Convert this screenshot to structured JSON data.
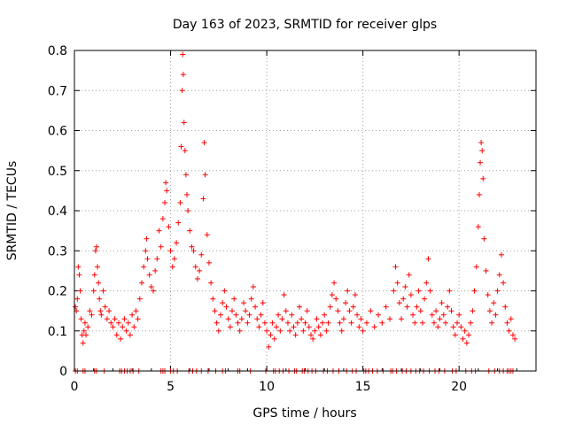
{
  "chart_data": {
    "type": "scatter",
    "title": "Day 163 of 2023, SRMTID for receiver glps",
    "xlabel": "GPS time / hours",
    "ylabel": "SRMTID / TECUs",
    "xlim": [
      0,
      24
    ],
    "ylim": [
      0,
      0.8
    ],
    "xticks": [
      0,
      5,
      10,
      15,
      20
    ],
    "yticks": [
      0,
      0.1,
      0.2,
      0.3,
      0.4,
      0.5,
      0.6,
      0.7,
      0.8
    ],
    "xtick_labels": [
      "0",
      "5",
      "10",
      "15",
      "20"
    ],
    "ytick_labels": [
      "0",
      "0.1",
      "0.2",
      "0.3",
      "0.4",
      "0.5",
      "0.6",
      "0.7",
      "0.8"
    ],
    "grid": true,
    "marker": "+",
    "color": "#ff0000",
    "series": [
      {
        "name": "SRMTID",
        "points": [
          [
            0.05,
            0.16
          ],
          [
            0.1,
            0.15
          ],
          [
            0.15,
            0.18
          ],
          [
            0.2,
            0.26
          ],
          [
            0.25,
            0.24
          ],
          [
            0.3,
            0.2
          ],
          [
            0.35,
            0.13
          ],
          [
            0.4,
            0.09
          ],
          [
            0.45,
            0.07
          ],
          [
            0.5,
            0.1
          ],
          [
            0.55,
            0.12
          ],
          [
            0.6,
            0.09
          ],
          [
            0.7,
            0.11
          ],
          [
            0.8,
            0.15
          ],
          [
            0.9,
            0.14
          ],
          [
            1.0,
            0.2
          ],
          [
            1.05,
            0.24
          ],
          [
            1.1,
            0.3
          ],
          [
            1.15,
            0.31
          ],
          [
            1.2,
            0.26
          ],
          [
            1.25,
            0.22
          ],
          [
            1.3,
            0.18
          ],
          [
            1.35,
            0.15
          ],
          [
            1.4,
            0.14
          ],
          [
            1.5,
            0.2
          ],
          [
            1.6,
            0.16
          ],
          [
            1.7,
            0.13
          ],
          [
            1.8,
            0.15
          ],
          [
            1.9,
            0.12
          ],
          [
            2.0,
            0.11
          ],
          [
            2.1,
            0.13
          ],
          [
            2.2,
            0.09
          ],
          [
            2.3,
            0.12
          ],
          [
            2.4,
            0.08
          ],
          [
            2.5,
            0.11
          ],
          [
            2.6,
            0.13
          ],
          [
            2.7,
            0.1
          ],
          [
            2.8,
            0.12
          ],
          [
            2.9,
            0.09
          ],
          [
            3.0,
            0.14
          ],
          [
            3.1,
            0.11
          ],
          [
            3.2,
            0.15
          ],
          [
            3.3,
            0.13
          ],
          [
            3.4,
            0.18
          ],
          [
            3.5,
            0.22
          ],
          [
            3.6,
            0.26
          ],
          [
            3.7,
            0.3
          ],
          [
            3.75,
            0.33
          ],
          [
            3.8,
            0.28
          ],
          [
            3.9,
            0.24
          ],
          [
            4.0,
            0.21
          ],
          [
            4.1,
            0.2
          ],
          [
            4.2,
            0.25
          ],
          [
            4.3,
            0.28
          ],
          [
            4.4,
            0.35
          ],
          [
            4.5,
            0.31
          ],
          [
            4.6,
            0.38
          ],
          [
            4.7,
            0.42
          ],
          [
            4.75,
            0.47
          ],
          [
            4.8,
            0.45
          ],
          [
            4.9,
            0.36
          ],
          [
            5.0,
            0.3
          ],
          [
            5.1,
            0.26
          ],
          [
            5.2,
            0.28
          ],
          [
            5.3,
            0.32
          ],
          [
            5.4,
            0.37
          ],
          [
            5.5,
            0.42
          ],
          [
            5.55,
            0.56
          ],
          [
            5.6,
            0.7
          ],
          [
            5.63,
            0.79
          ],
          [
            5.66,
            0.74
          ],
          [
            5.7,
            0.62
          ],
          [
            5.75,
            0.55
          ],
          [
            5.8,
            0.49
          ],
          [
            5.85,
            0.44
          ],
          [
            5.9,
            0.4
          ],
          [
            6.0,
            0.35
          ],
          [
            6.1,
            0.31
          ],
          [
            6.2,
            0.3
          ],
          [
            6.3,
            0.26
          ],
          [
            6.4,
            0.23
          ],
          [
            6.5,
            0.25
          ],
          [
            6.6,
            0.29
          ],
          [
            6.7,
            0.43
          ],
          [
            6.75,
            0.57
          ],
          [
            6.8,
            0.49
          ],
          [
            6.9,
            0.34
          ],
          [
            7.0,
            0.27
          ],
          [
            7.1,
            0.22
          ],
          [
            7.2,
            0.18
          ],
          [
            7.3,
            0.15
          ],
          [
            7.4,
            0.12
          ],
          [
            7.5,
            0.1
          ],
          [
            7.6,
            0.14
          ],
          [
            7.7,
            0.17
          ],
          [
            7.8,
            0.2
          ],
          [
            7.9,
            0.16
          ],
          [
            8.0,
            0.13
          ],
          [
            8.1,
            0.11
          ],
          [
            8.2,
            0.15
          ],
          [
            8.3,
            0.18
          ],
          [
            8.4,
            0.14
          ],
          [
            8.5,
            0.12
          ],
          [
            8.6,
            0.1
          ],
          [
            8.7,
            0.13
          ],
          [
            8.8,
            0.17
          ],
          [
            8.9,
            0.15
          ],
          [
            9.0,
            0.12
          ],
          [
            9.1,
            0.14
          ],
          [
            9.2,
            0.18
          ],
          [
            9.3,
            0.21
          ],
          [
            9.4,
            0.16
          ],
          [
            9.5,
            0.13
          ],
          [
            9.6,
            0.11
          ],
          [
            9.7,
            0.14
          ],
          [
            9.8,
            0.17
          ],
          [
            9.9,
            0.12
          ],
          [
            10.0,
            0.1
          ],
          [
            10.1,
            0.06
          ],
          [
            10.2,
            0.09
          ],
          [
            10.3,
            0.12
          ],
          [
            10.4,
            0.08
          ],
          [
            10.5,
            0.11
          ],
          [
            10.6,
            0.14
          ],
          [
            10.7,
            0.1
          ],
          [
            10.8,
            0.13
          ],
          [
            10.9,
            0.19
          ],
          [
            11.0,
            0.15
          ],
          [
            11.1,
            0.12
          ],
          [
            11.2,
            0.1
          ],
          [
            11.3,
            0.14
          ],
          [
            11.4,
            0.11
          ],
          [
            11.5,
            0.09
          ],
          [
            11.6,
            0.12
          ],
          [
            11.7,
            0.16
          ],
          [
            11.8,
            0.13
          ],
          [
            11.9,
            0.1
          ],
          [
            12.0,
            0.12
          ],
          [
            12.1,
            0.15
          ],
          [
            12.2,
            0.11
          ],
          [
            12.3,
            0.09
          ],
          [
            12.4,
            0.08
          ],
          [
            12.5,
            0.1
          ],
          [
            12.6,
            0.13
          ],
          [
            12.7,
            0.11
          ],
          [
            12.8,
            0.09
          ],
          [
            12.9,
            0.12
          ],
          [
            13.0,
            0.14
          ],
          [
            13.1,
            0.1
          ],
          [
            13.2,
            0.12
          ],
          [
            13.3,
            0.16
          ],
          [
            13.4,
            0.19
          ],
          [
            13.5,
            0.22
          ],
          [
            13.6,
            0.18
          ],
          [
            13.7,
            0.15
          ],
          [
            13.8,
            0.12
          ],
          [
            13.9,
            0.1
          ],
          [
            14.0,
            0.13
          ],
          [
            14.1,
            0.17
          ],
          [
            14.2,
            0.2
          ],
          [
            14.3,
            0.15
          ],
          [
            14.4,
            0.12
          ],
          [
            14.5,
            0.16
          ],
          [
            14.6,
            0.19
          ],
          [
            14.7,
            0.14
          ],
          [
            14.8,
            0.11
          ],
          [
            14.9,
            0.13
          ],
          [
            15.0,
            0.1
          ],
          [
            15.2,
            0.12
          ],
          [
            15.4,
            0.15
          ],
          [
            15.6,
            0.11
          ],
          [
            15.8,
            0.14
          ],
          [
            16.0,
            0.12
          ],
          [
            16.2,
            0.16
          ],
          [
            16.4,
            0.13
          ],
          [
            16.6,
            0.2
          ],
          [
            16.7,
            0.26
          ],
          [
            16.8,
            0.22
          ],
          [
            16.9,
            0.17
          ],
          [
            17.0,
            0.13
          ],
          [
            17.1,
            0.18
          ],
          [
            17.2,
            0.21
          ],
          [
            17.3,
            0.16
          ],
          [
            17.4,
            0.24
          ],
          [
            17.5,
            0.19
          ],
          [
            17.6,
            0.14
          ],
          [
            17.7,
            0.12
          ],
          [
            17.8,
            0.16
          ],
          [
            17.9,
            0.2
          ],
          [
            18.0,
            0.15
          ],
          [
            18.1,
            0.12
          ],
          [
            18.2,
            0.18
          ],
          [
            18.3,
            0.22
          ],
          [
            18.4,
            0.28
          ],
          [
            18.5,
            0.2
          ],
          [
            18.6,
            0.14
          ],
          [
            18.7,
            0.12
          ],
          [
            18.8,
            0.15
          ],
          [
            18.9,
            0.11
          ],
          [
            19.0,
            0.13
          ],
          [
            19.1,
            0.17
          ],
          [
            19.2,
            0.14
          ],
          [
            19.3,
            0.12
          ],
          [
            19.4,
            0.16
          ],
          [
            19.5,
            0.2
          ],
          [
            19.6,
            0.15
          ],
          [
            19.7,
            0.11
          ],
          [
            19.8,
            0.09
          ],
          [
            19.9,
            0.12
          ],
          [
            20.0,
            0.14
          ],
          [
            20.1,
            0.11
          ],
          [
            20.2,
            0.08
          ],
          [
            20.3,
            0.1
          ],
          [
            20.4,
            0.07
          ],
          [
            20.5,
            0.09
          ],
          [
            20.6,
            0.12
          ],
          [
            20.7,
            0.15
          ],
          [
            20.8,
            0.2
          ],
          [
            20.9,
            0.26
          ],
          [
            21.0,
            0.36
          ],
          [
            21.05,
            0.44
          ],
          [
            21.1,
            0.52
          ],
          [
            21.15,
            0.57
          ],
          [
            21.2,
            0.55
          ],
          [
            21.25,
            0.48
          ],
          [
            21.3,
            0.33
          ],
          [
            21.4,
            0.25
          ],
          [
            21.5,
            0.19
          ],
          [
            21.6,
            0.15
          ],
          [
            21.7,
            0.12
          ],
          [
            21.8,
            0.17
          ],
          [
            21.9,
            0.14
          ],
          [
            22.0,
            0.2
          ],
          [
            22.1,
            0.24
          ],
          [
            22.2,
            0.29
          ],
          [
            22.3,
            0.22
          ],
          [
            22.4,
            0.16
          ],
          [
            22.5,
            0.12
          ],
          [
            22.6,
            0.1
          ],
          [
            22.7,
            0.13
          ],
          [
            22.8,
            0.09
          ],
          [
            22.9,
            0.08
          ]
        ]
      }
    ],
    "zeros": [
      0.05,
      0.15,
      0.45,
      0.55,
      1.05,
      1.15,
      1.55,
      2.35,
      2.45,
      2.6,
      2.75,
      2.9,
      3.05,
      3.35,
      4.5,
      4.6,
      4.7,
      5.0,
      5.15,
      5.35,
      5.95,
      6.15,
      6.35,
      6.6,
      6.95,
      7.35,
      7.7,
      7.85,
      8.5,
      8.6,
      9.15,
      9.95,
      10.35,
      10.45,
      10.65,
      10.85,
      11.15,
      11.45,
      11.55,
      11.85,
      11.95,
      12.15,
      12.35,
      12.55,
      12.95,
      13.15,
      13.45,
      13.75,
      14.15,
      14.45,
      14.65,
      15.05,
      15.15,
      15.3,
      15.5,
      15.75,
      16.05,
      16.45,
      16.55,
      16.75,
      17.05,
      17.25,
      17.5,
      17.75,
      17.95,
      18.15,
      18.45,
      18.75,
      18.95,
      19.25,
      19.65,
      19.85,
      20.35,
      20.65,
      20.85,
      21.55,
      21.85,
      22.1,
      22.3,
      22.5,
      22.6,
      22.7,
      22.8
    ]
  }
}
